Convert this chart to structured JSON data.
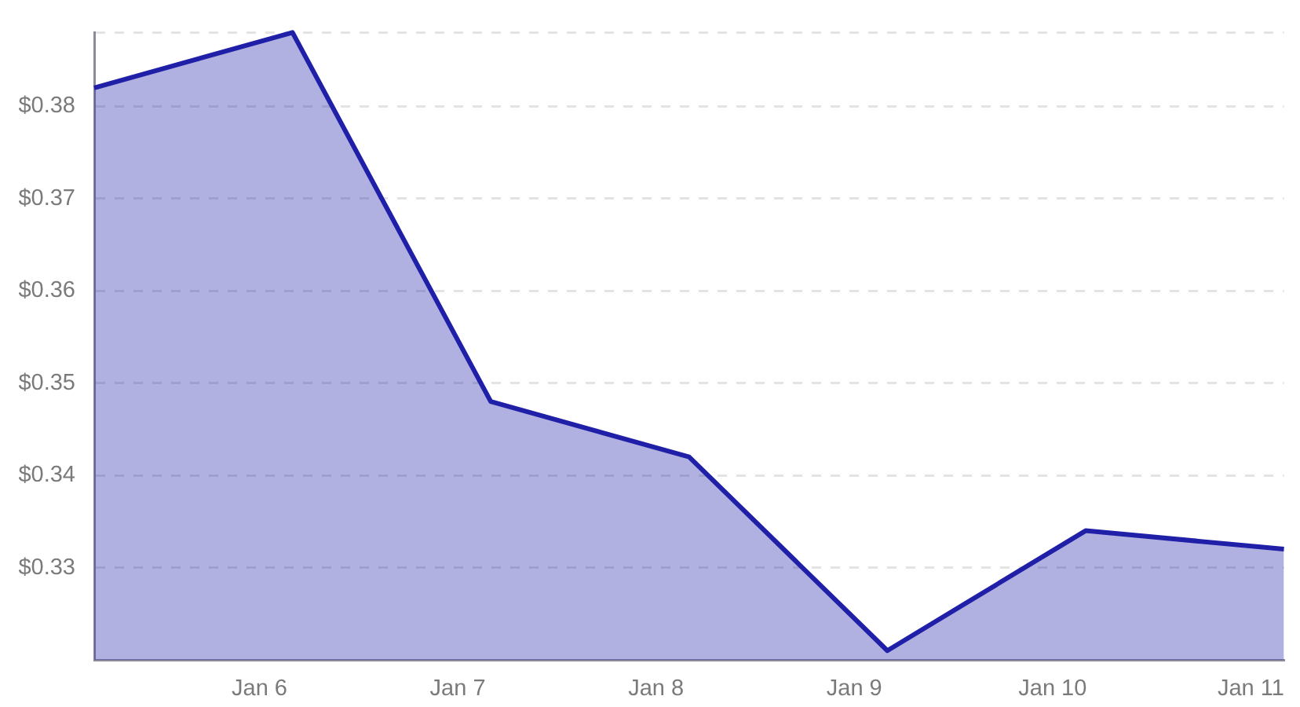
{
  "chart_data": {
    "type": "area",
    "x": [
      "--01-05T04:00",
      "--01-06T04:00",
      "--01-07T04:00",
      "--01-08T04:00",
      "--01-09T04:00",
      "--01-10T04:00",
      "--01-11T04:00"
    ],
    "values": [
      0.382,
      0.388,
      0.348,
      0.342,
      0.321,
      0.334,
      0.332
    ],
    "color": "#1f1fa8",
    "xlim": [
      "--01-05T04:00",
      "--01-11T04:00"
    ],
    "xticks": [
      {
        "value": "--01-06",
        "label": "Jan 6"
      },
      {
        "value": "--01-07",
        "label": "Jan 7"
      },
      {
        "value": "--01-08",
        "label": "Jan 8"
      },
      {
        "value": "--01-09",
        "label": "Jan 9"
      },
      {
        "value": "--01-10",
        "label": "Jan 10"
      },
      {
        "value": "--01-11",
        "label": "Jan 11"
      }
    ],
    "ylim": [
      0.32,
      0.388
    ],
    "yticks": [
      {
        "value": 0.33,
        "label": "$0.33"
      },
      {
        "value": 0.34,
        "label": "$0.34"
      },
      {
        "value": 0.35,
        "label": "$0.35"
      },
      {
        "value": 0.36,
        "label": "$0.36"
      },
      {
        "value": 0.37,
        "label": "$0.37"
      },
      {
        "value": 0.38,
        "label": "$0.38"
      },
      {
        "value": 0.388,
        "label": null
      }
    ],
    "grid": "y",
    "line_style": "solid"
  }
}
